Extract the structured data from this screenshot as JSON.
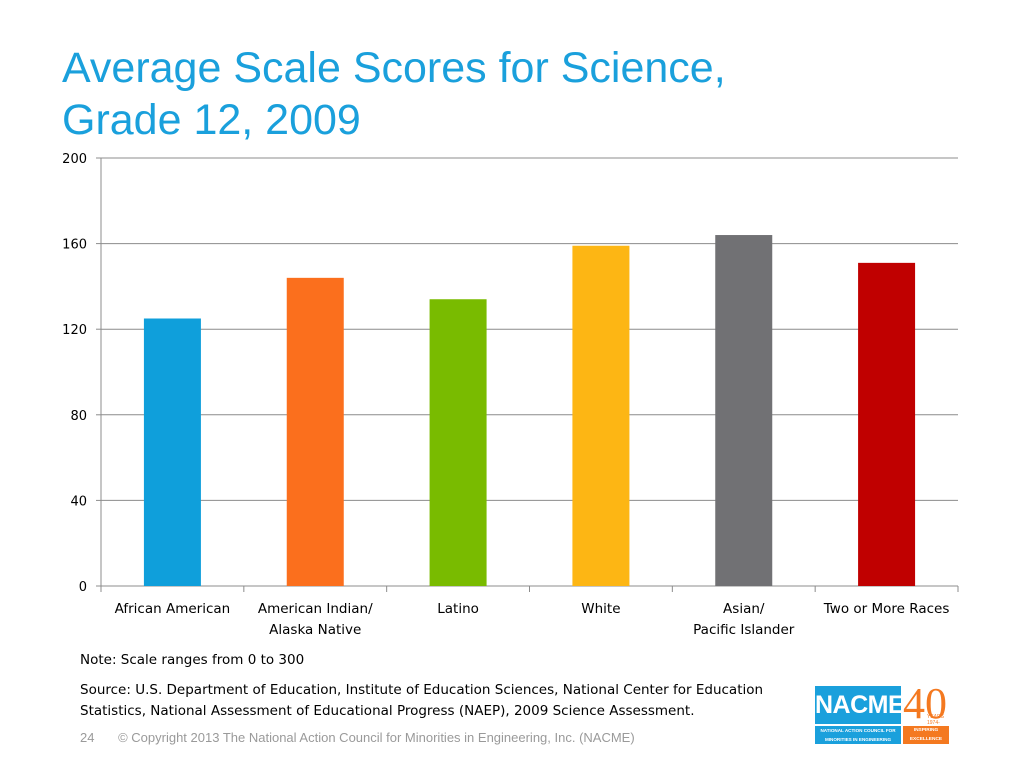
{
  "slide": {
    "title_line1": "Average Scale Scores for Science,",
    "title_line2": "Grade 12, 2009",
    "note": "Note: Scale ranges from 0 to 300",
    "source_line1": "Source: U.S. Department of Education, Institute of Education Sciences, National Center for Education",
    "source_line2": "Statistics, National Assessment of Educational Progress (NAEP), 2009 Science Assessment.",
    "page_number": "24",
    "copyright": "© Copyright 2013 The National Action Council for Minorities in Engineering, Inc. (NACME)"
  },
  "logo": {
    "name": "NACME",
    "subtitle_line1": "NATIONAL ACTION COUNCIL FOR",
    "subtitle_line2": "MINORITIES IN ENGINEERING",
    "anniversary": "40",
    "years_line1": "YEARS",
    "years_line2": "1974-2014",
    "tagline_line1": "INSPIRING",
    "tagline_line2": "EXCELLENCE",
    "colors": {
      "blue": "#1aa0dc",
      "orange": "#f47920"
    }
  },
  "chart_data": {
    "type": "bar",
    "title": "",
    "xlabel": "",
    "ylabel": "",
    "ylim": [
      0,
      200
    ],
    "yticks": [
      0,
      40,
      80,
      120,
      160,
      200
    ],
    "grid": true,
    "categories": [
      [
        "African American"
      ],
      [
        "American Indian/",
        "Alaska Native"
      ],
      [
        "Latino"
      ],
      [
        "White"
      ],
      [
        "Asian/",
        "Pacific Islander"
      ],
      [
        "Two or More Races"
      ]
    ],
    "values": [
      125,
      144,
      134,
      159,
      164,
      151
    ],
    "colors": [
      "#0f9fdb",
      "#fb6f1d",
      "#79bb00",
      "#fdb614",
      "#717174",
      "#c00000"
    ]
  }
}
